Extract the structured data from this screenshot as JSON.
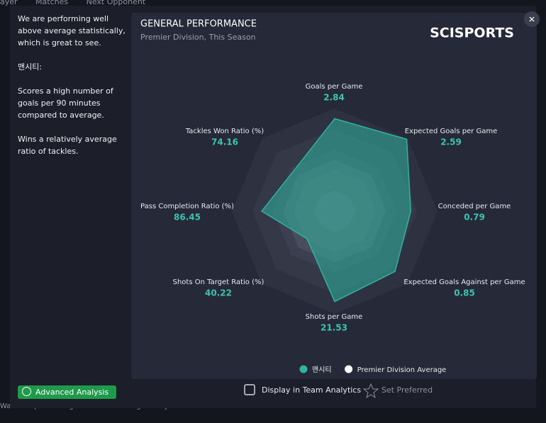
{
  "background": {
    "tabs": [
      "ayer",
      "Matches",
      "Next Opponent"
    ],
    "footer": "Walker is performing well above average in key statistics for this creative role."
  },
  "summary": {
    "paragraphs": [
      "We are performing well above average statistically, which is great to see.",
      "맨시티:",
      "Scores a high number of goals per 90 minutes compared to average.",
      "Wins a relatively average ratio of tackles."
    ]
  },
  "chart_data": {
    "type": "radar",
    "title": "GENERAL PERFORMANCE",
    "subtitle": "Premier Division, This Season",
    "brand": "SCISPORTS",
    "categories": [
      "Goals per Game",
      "Expected Goals per Game",
      "Conceded per Game",
      "Expected Goals Against per Game",
      "Shots per Game",
      "Shots On Target Ratio (%)",
      "Pass Completion Ratio (%)",
      "Tackles Won Ratio (%)"
    ],
    "category_values": [
      2.84,
      2.59,
      0.79,
      0.85,
      21.53,
      40.22,
      86.45,
      74.16
    ],
    "rlim": [
      0,
      100
    ],
    "rticks": [
      20,
      40,
      60,
      80,
      100
    ],
    "series": [
      {
        "name": "맨시티",
        "color": "#2fb3a0",
        "values": [
          90,
          99,
          74,
          83,
          88,
          38,
          71,
          56
        ]
      },
      {
        "name": "Premier Division Average",
        "color": "#ffffff",
        "values": [
          50,
          50,
          50,
          50,
          50,
          50,
          50,
          50
        ]
      }
    ]
  },
  "controls": {
    "display_in_team_analytics": "Display in Team Analytics",
    "set_preferred": "Set Preferred",
    "advanced_analysis": "Advanced Analysis"
  }
}
